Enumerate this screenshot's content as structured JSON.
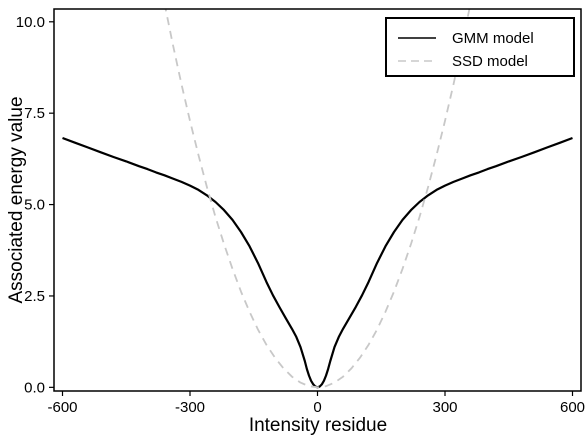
{
  "chart_data": {
    "type": "line",
    "title": "",
    "xlabel": "Intensity residue",
    "ylabel": "Associated energy value",
    "xlim": [
      -620,
      620
    ],
    "ylim": [
      -0.1,
      10.35
    ],
    "xticks": [
      -600,
      -300,
      0,
      300,
      600
    ],
    "xtick_labels": [
      "-600",
      "-300",
      "0",
      "300",
      "600"
    ],
    "yticks": [
      0.0,
      2.5,
      5.0,
      7.5,
      10.0
    ],
    "ytick_labels": [
      "0.0",
      "2.5",
      "5.0",
      "7.5",
      "10.0"
    ],
    "grid": false,
    "legend_position": "top-right",
    "series": [
      {
        "name": "GMM model",
        "color": "#000000",
        "style": "solid",
        "x": [
          0,
          5,
          10,
          15,
          20,
          25,
          30,
          40,
          50,
          60,
          75,
          90,
          105,
          120,
          140,
          160,
          180,
          200,
          220,
          240,
          260,
          280,
          300,
          320,
          340,
          360,
          380,
          400,
          420,
          450,
          480,
          510,
          540,
          570,
          600
        ],
        "y": [
          0.0,
          0.02,
          0.08,
          0.18,
          0.32,
          0.5,
          0.72,
          1.1,
          1.38,
          1.6,
          1.9,
          2.2,
          2.52,
          2.88,
          3.4,
          3.86,
          4.25,
          4.58,
          4.85,
          5.07,
          5.25,
          5.4,
          5.52,
          5.62,
          5.71,
          5.8,
          5.88,
          5.97,
          6.05,
          6.18,
          6.3,
          6.43,
          6.56,
          6.69,
          6.82
        ]
      },
      {
        "name": "SSD model",
        "color": "#c8c8c8",
        "style": "dashed",
        "x": [
          0,
          20,
          40,
          60,
          80,
          100,
          120,
          140,
          160,
          180,
          200,
          220,
          240,
          260,
          280,
          300,
          320,
          340,
          360
        ],
        "y": [
          0.0,
          0.03,
          0.13,
          0.29,
          0.52,
          0.81,
          1.16,
          1.58,
          2.07,
          2.62,
          3.24,
          3.92,
          4.66,
          5.47,
          6.35,
          7.29,
          8.29,
          9.36,
          10.5
        ]
      }
    ]
  }
}
